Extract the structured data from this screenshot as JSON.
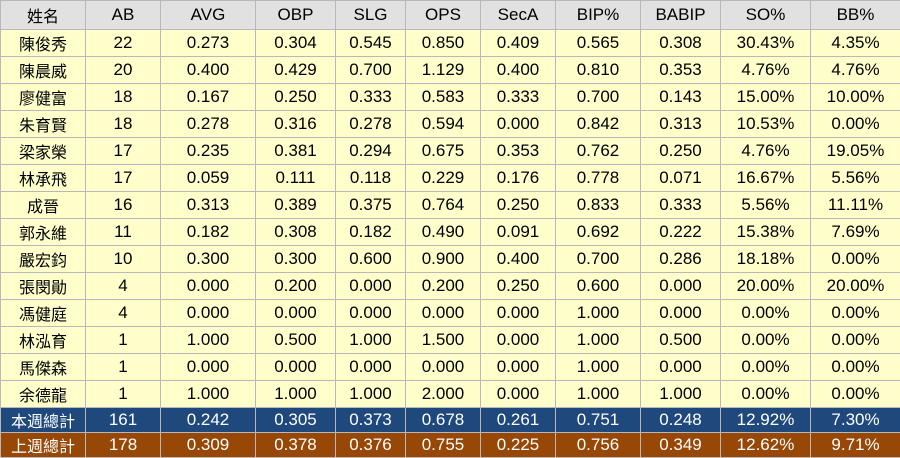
{
  "headers": [
    "姓名",
    "AB",
    "AVG",
    "OBP",
    "SLG",
    "OPS",
    "SecA",
    "BIP%",
    "BABIP",
    "SO%",
    "BB%"
  ],
  "rows": [
    [
      "陳俊秀",
      "22",
      "0.273",
      "0.304",
      "0.545",
      "0.850",
      "0.409",
      "0.565",
      "0.308",
      "30.43%",
      "4.35%"
    ],
    [
      "陳晨威",
      "20",
      "0.400",
      "0.429",
      "0.700",
      "1.129",
      "0.400",
      "0.810",
      "0.353",
      "4.76%",
      "4.76%"
    ],
    [
      "廖健富",
      "18",
      "0.167",
      "0.250",
      "0.333",
      "0.583",
      "0.333",
      "0.700",
      "0.143",
      "15.00%",
      "10.00%"
    ],
    [
      "朱育賢",
      "18",
      "0.278",
      "0.316",
      "0.278",
      "0.594",
      "0.000",
      "0.842",
      "0.313",
      "10.53%",
      "0.00%"
    ],
    [
      "梁家榮",
      "17",
      "0.235",
      "0.381",
      "0.294",
      "0.675",
      "0.353",
      "0.762",
      "0.250",
      "4.76%",
      "19.05%"
    ],
    [
      "林承飛",
      "17",
      "0.059",
      "0.111",
      "0.118",
      "0.229",
      "0.176",
      "0.778",
      "0.071",
      "16.67%",
      "5.56%"
    ],
    [
      "成晉",
      "16",
      "0.313",
      "0.389",
      "0.375",
      "0.764",
      "0.250",
      "0.833",
      "0.333",
      "5.56%",
      "11.11%"
    ],
    [
      "郭永維",
      "11",
      "0.182",
      "0.308",
      "0.182",
      "0.490",
      "0.091",
      "0.692",
      "0.222",
      "15.38%",
      "7.69%"
    ],
    [
      "嚴宏鈞",
      "10",
      "0.300",
      "0.300",
      "0.600",
      "0.900",
      "0.400",
      "0.700",
      "0.286",
      "18.18%",
      "0.00%"
    ],
    [
      "張閔勛",
      "4",
      "0.000",
      "0.200",
      "0.000",
      "0.200",
      "0.250",
      "0.600",
      "0.000",
      "20.00%",
      "20.00%"
    ],
    [
      "馮健庭",
      "4",
      "0.000",
      "0.000",
      "0.000",
      "0.000",
      "0.000",
      "1.000",
      "0.000",
      "0.00%",
      "0.00%"
    ],
    [
      "林泓育",
      "1",
      "1.000",
      "0.500",
      "1.000",
      "1.500",
      "0.000",
      "1.000",
      "0.500",
      "0.00%",
      "0.00%"
    ],
    [
      "馬傑森",
      "1",
      "0.000",
      "0.000",
      "0.000",
      "0.000",
      "0.000",
      "1.000",
      "0.000",
      "0.00%",
      "0.00%"
    ],
    [
      "余德龍",
      "1",
      "1.000",
      "1.000",
      "1.000",
      "2.000",
      "0.000",
      "1.000",
      "1.000",
      "0.00%",
      "0.00%"
    ]
  ],
  "totals": {
    "this_week": [
      "本週總計",
      "161",
      "0.242",
      "0.305",
      "0.373",
      "0.678",
      "0.261",
      "0.751",
      "0.248",
      "12.92%",
      "7.30%"
    ],
    "last_week": [
      "上週總計",
      "178",
      "0.309",
      "0.378",
      "0.376",
      "0.755",
      "0.225",
      "0.756",
      "0.349",
      "12.62%",
      "9.71%"
    ]
  },
  "colors": {
    "header_bg": "#e1e1e1",
    "row_bg": "#ffffcc",
    "this_week_bg": "#1f497d",
    "last_week_bg": "#974706",
    "total_text": "#ffffff"
  }
}
